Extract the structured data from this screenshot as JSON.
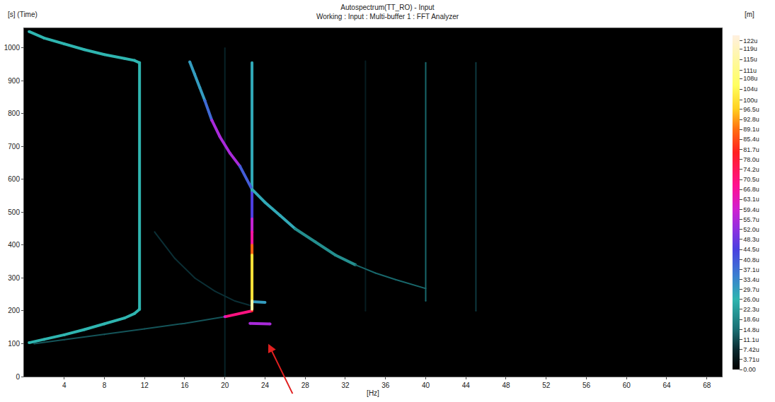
{
  "chart_data": {
    "type": "scatter",
    "title": "Autospectrum(TT_RO) - Input",
    "subtitle": "Working : Input : Multi-buffer 1 : FFT Analyzer",
    "xlabel": "[Hz]",
    "ylabel": "[s] (Time)",
    "xlim": [
      0,
      69.5
    ],
    "xticks": [
      4,
      8,
      12,
      16,
      20,
      24,
      28,
      32,
      36,
      40,
      44,
      48,
      52,
      56,
      60,
      64,
      68
    ],
    "ylim": [
      0,
      1060
    ],
    "yticks": [
      0,
      100,
      200,
      300,
      400,
      500,
      600,
      700,
      800,
      900,
      1000
    ],
    "grid": false,
    "colorbar": {
      "label": "[m]",
      "range": [
        0,
        124
      ],
      "ticks": [
        {
          "value": 0,
          "label": "0.00"
        },
        {
          "value": 3.71,
          "label": "3.71u"
        },
        {
          "value": 7.42,
          "label": "7.42u"
        },
        {
          "value": 11.1,
          "label": "11.1u"
        },
        {
          "value": 14.8,
          "label": "14.8u"
        },
        {
          "value": 18.6,
          "label": "18.6u"
        },
        {
          "value": 22.3,
          "label": "22.3u"
        },
        {
          "value": 26.0,
          "label": "26.0u"
        },
        {
          "value": 29.7,
          "label": "29.7u"
        },
        {
          "value": 33.4,
          "label": "33.4u"
        },
        {
          "value": 37.1,
          "label": "37.1u"
        },
        {
          "value": 40.8,
          "label": "40.8u"
        },
        {
          "value": 44.5,
          "label": "44.5u"
        },
        {
          "value": 48.3,
          "label": "48.3u"
        },
        {
          "value": 52.0,
          "label": "52.0u"
        },
        {
          "value": 55.7,
          "label": "55.7u"
        },
        {
          "value": 59.4,
          "label": "59.4u"
        },
        {
          "value": 63.1,
          "label": "63.1u"
        },
        {
          "value": 66.8,
          "label": "66.8u"
        },
        {
          "value": 70.5,
          "label": "70.5u"
        },
        {
          "value": 74.2,
          "label": "74.2u"
        },
        {
          "value": 78.0,
          "label": "78.0u"
        },
        {
          "value": 81.7,
          "label": "81.7u"
        },
        {
          "value": 85.4,
          "label": "85.4u"
        },
        {
          "value": 89.1,
          "label": "89.1u"
        },
        {
          "value": 92.8,
          "label": "92.8u"
        },
        {
          "value": 96.5,
          "label": "96.5u"
        },
        {
          "value": 100,
          "label": "100u"
        },
        {
          "value": 104,
          "label": "104u"
        },
        {
          "value": 108,
          "label": "108u"
        },
        {
          "value": 111,
          "label": "111u"
        },
        {
          "value": 115,
          "label": "115u"
        },
        {
          "value": 119,
          "label": "119u"
        },
        {
          "value": 122,
          "label": "122u"
        }
      ]
    },
    "series": [
      {
        "x": [
          20,
          20
        ],
        "y": [
          0,
          1000
        ],
        "values": [
          6,
          6
        ]
      },
      {
        "x": [
          34,
          34
        ],
        "y": [
          200,
          960
        ],
        "values": [
          5,
          5
        ]
      },
      {
        "x": [
          40,
          40
        ],
        "y": [
          230,
          955
        ],
        "values": [
          14,
          14
        ]
      },
      {
        "x": [
          45,
          45
        ],
        "y": [
          200,
          955
        ],
        "values": [
          9,
          9
        ]
      },
      {
        "x": [
          13,
          15,
          17,
          19,
          21,
          22.7
        ],
        "y": [
          440,
          360,
          300,
          260,
          230,
          215
        ],
        "values": [
          8,
          8,
          8,
          8,
          8,
          8
        ]
      },
      {
        "x": [
          1,
          4,
          8,
          12,
          16,
          20
        ],
        "y": [
          100,
          112,
          128,
          145,
          162,
          182
        ],
        "values": [
          12,
          12,
          12,
          12,
          12,
          12
        ]
      },
      {
        "x": [
          20,
          22.7
        ],
        "y": [
          182,
          200
        ],
        "values": [
          60,
          80
        ]
      },
      {
        "x": [
          22.5,
          24.5
        ],
        "y": [
          162,
          160
        ],
        "values": [
          55,
          55
        ]
      },
      {
        "x": [
          22.7,
          24
        ],
        "y": [
          228,
          226
        ],
        "values": [
          30,
          30
        ]
      },
      {
        "x": [
          0.5,
          2,
          4,
          6,
          8,
          10,
          11,
          11.5
        ],
        "y": [
          103,
          113,
          127,
          143,
          160,
          178,
          192,
          205
        ],
        "values": [
          26,
          26,
          26,
          26,
          26,
          26,
          26,
          26
        ]
      },
      {
        "x": [
          11.5,
          11.5
        ],
        "y": [
          205,
          955
        ],
        "values": [
          26,
          26
        ]
      },
      {
        "x": [
          11.5,
          11,
          10,
          8,
          6,
          4,
          2,
          0.5
        ],
        "y": [
          955,
          962,
          968,
          980,
          995,
          1012,
          1030,
          1050
        ],
        "values": [
          26,
          26,
          26,
          26,
          26,
          26,
          26,
          26
        ]
      },
      {
        "x": [
          22.7,
          22.7
        ],
        "y": [
          560,
          955
        ],
        "values": [
          28,
          28
        ]
      },
      {
        "x": [
          22.7,
          22.7
        ],
        "y": [
          480,
          560
        ],
        "values": [
          45,
          45
        ]
      },
      {
        "x": [
          22.7,
          22.7
        ],
        "y": [
          440,
          480
        ],
        "values": [
          58,
          58
        ]
      },
      {
        "x": [
          22.7,
          22.7
        ],
        "y": [
          400,
          440
        ],
        "values": [
          66,
          66
        ]
      },
      {
        "x": [
          22.7,
          22.7
        ],
        "y": [
          370,
          400
        ],
        "values": [
          88,
          88
        ]
      },
      {
        "x": [
          22.7,
          22.7
        ],
        "y": [
          230,
          370
        ],
        "values": [
          100,
          100
        ]
      },
      {
        "x": [
          22.7,
          22.7
        ],
        "y": [
          205,
          230
        ],
        "values": [
          115,
          115
        ]
      },
      {
        "x": [
          16.5,
          17,
          17.5,
          18
        ],
        "y": [
          958,
          920,
          880,
          840
        ],
        "values": [
          30,
          30,
          30,
          30
        ]
      },
      {
        "x": [
          18,
          18.7
        ],
        "y": [
          840,
          780
        ],
        "values": [
          38,
          38
        ]
      },
      {
        "x": [
          18.7,
          19.5,
          20.5,
          21.5
        ],
        "y": [
          780,
          730,
          680,
          640
        ],
        "values": [
          55,
          55,
          55,
          55
        ]
      },
      {
        "x": [
          21.5,
          22.7
        ],
        "y": [
          640,
          570
        ],
        "values": [
          40,
          40
        ]
      },
      {
        "x": [
          22.7,
          24,
          25.5,
          27
        ],
        "y": [
          570,
          530,
          490,
          450
        ],
        "values": [
          28,
          28,
          28,
          28
        ]
      },
      {
        "x": [
          27,
          29,
          31,
          33
        ],
        "y": [
          450,
          410,
          370,
          340
        ],
        "values": [
          20,
          20,
          20,
          20
        ]
      },
      {
        "x": [
          33,
          35,
          37,
          40
        ],
        "y": [
          340,
          315,
          295,
          268
        ],
        "values": [
          14,
          14,
          14,
          14
        ]
      }
    ]
  }
}
